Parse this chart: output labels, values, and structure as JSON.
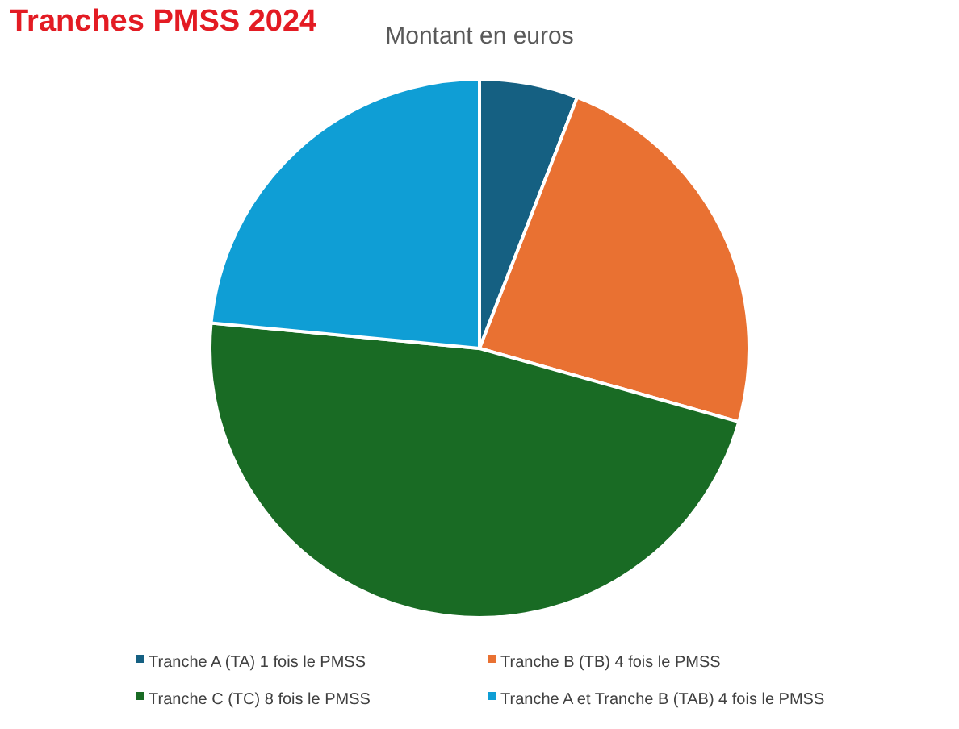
{
  "chart_data": {
    "type": "pie",
    "title": "Tranches PMSS 2024",
    "subtitle": "Montant en euros",
    "categories": [
      "Tranche A (TA) 1 fois le PMSS",
      "Tranche B (TB) 4 fois le PMSS",
      "Tranche C (TC) 8 fois le PMSS",
      "Tranche A et Tranche B (TAB) 4 fois le PMSS"
    ],
    "values": [
      5.9,
      23.5,
      47.1,
      23.5
    ],
    "colors": [
      "#156082",
      "#e97132",
      "#196b24",
      "#0f9ed5"
    ],
    "legend": "bottom"
  }
}
